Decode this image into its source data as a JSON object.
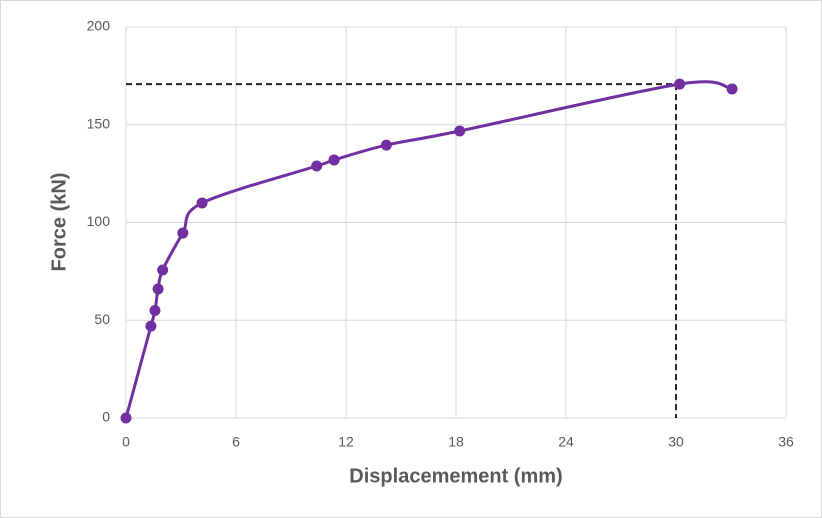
{
  "chart_data": {
    "type": "scatter",
    "smooth": true,
    "x_label": "Displacemement (mm)",
    "y_label": "Force (kN)",
    "x": [
      0,
      1.36,
      1.58,
      1.75,
      2.0,
      3.1,
      4.15,
      10.4,
      11.35,
      14.2,
      18.2,
      30.2,
      33.06
    ],
    "series": [
      {
        "color": "#7030a0",
        "values": [
          0,
          47,
          55,
          66,
          75.7,
          94.6,
          110,
          128.9,
          132,
          139.6,
          146.8,
          170.8,
          168.3
        ]
      }
    ],
    "guide": {
      "x": 30,
      "y": 170.8,
      "color": "#262626"
    },
    "xlim": [
      0,
      36
    ],
    "xticks": [
      0,
      6,
      12,
      18,
      24,
      30,
      36
    ],
    "ylim": [
      0,
      200
    ],
    "yticks": [
      0,
      50,
      100,
      150,
      200
    ],
    "grid": true
  }
}
